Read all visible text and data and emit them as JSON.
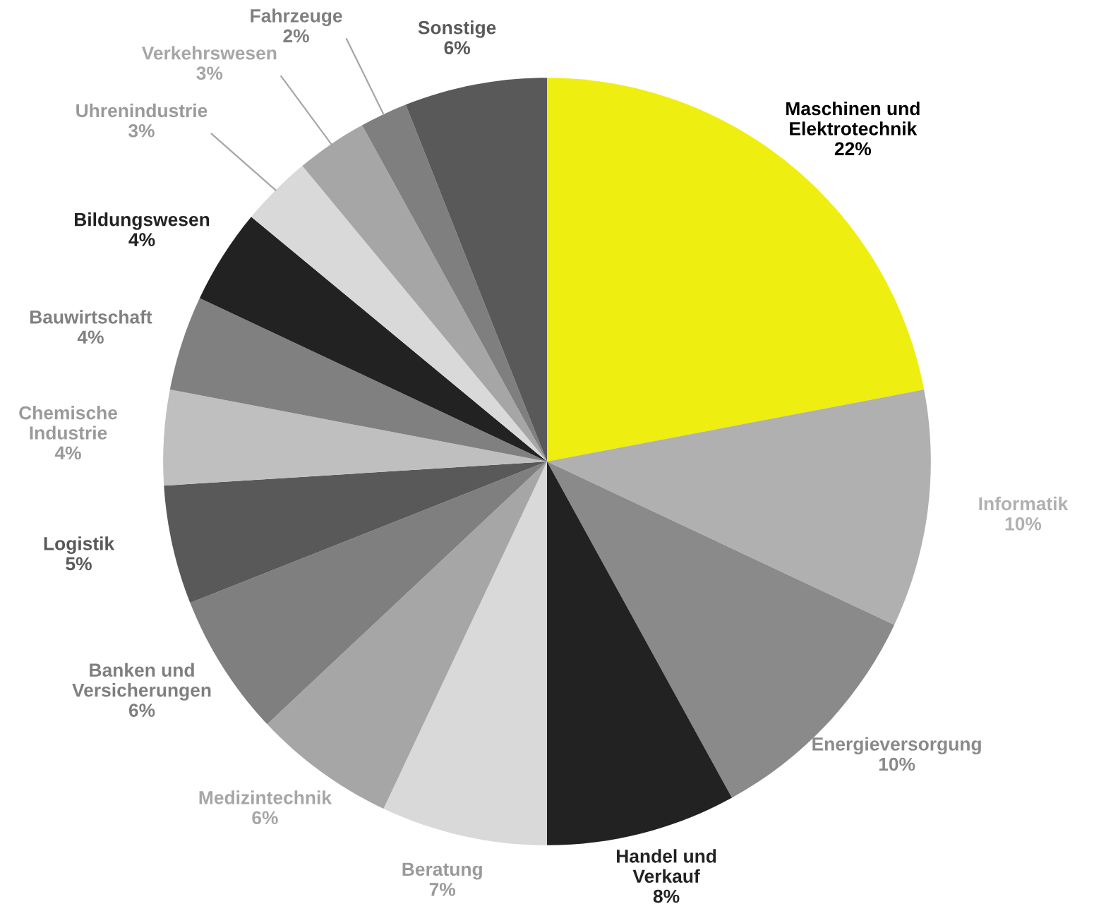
{
  "chart_data": {
    "type": "pie",
    "categories": [
      "Maschinen und\nElektrotechnik",
      "Informatik",
      "Energieversorgung",
      "Handel und\nVerkauf",
      "Beratung",
      "Medizintechnik",
      "Banken und\nVersicherungen",
      "Logistik",
      "Chemische\nIndustrie",
      "Bauwirtschaft",
      "Bildungswesen",
      "Uhrenindustrie",
      "Verkehrswesen",
      "Fahrzeuge",
      "Sonstige"
    ],
    "values": [
      22,
      10,
      10,
      8,
      7,
      6,
      6,
      5,
      4,
      4,
      4,
      3,
      3,
      2,
      6
    ],
    "colors": [
      "#eeee11",
      "#b0b0b0",
      "#8a8a8a",
      "#222222",
      "#d9d9d9",
      "#a6a6a6",
      "#7f7f7f",
      "#595959",
      "#bfbfbf",
      "#808080",
      "#222222",
      "#d9d9d9",
      "#a6a6a6",
      "#7f7f7f",
      "#595959"
    ],
    "value_labels": [
      "22%",
      "10%",
      "10%",
      "8%",
      "7%",
      "6%",
      "6%",
      "5%",
      "4%",
      "4%",
      "4%",
      "3%",
      "3%",
      "2%",
      "6%"
    ],
    "legend": false
  }
}
